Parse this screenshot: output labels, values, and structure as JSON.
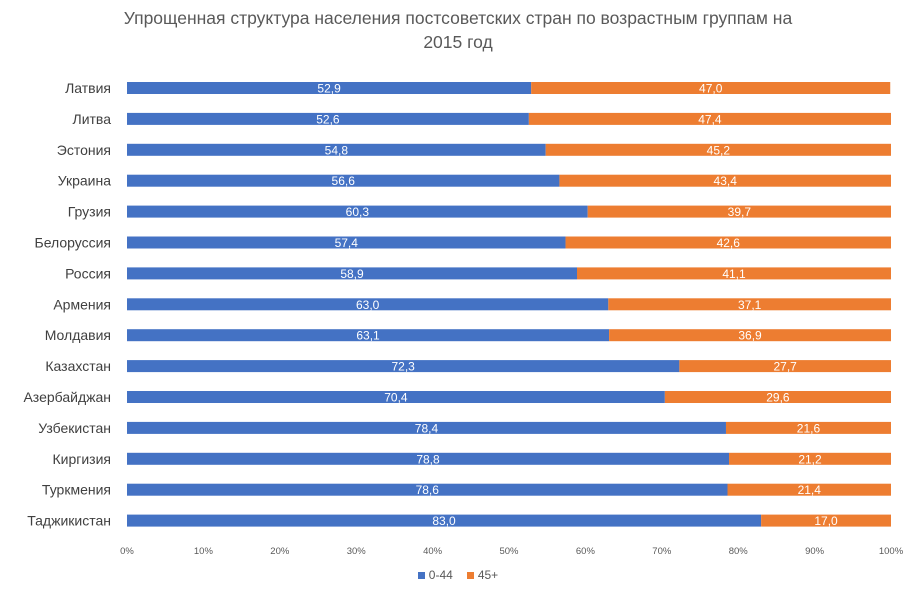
{
  "chart_data": {
    "type": "bar",
    "orientation": "horizontal",
    "stacked": "percent",
    "title": "Упрощенная структура населения постсоветских стран по возрастным группам на 2015 год",
    "title_lines": [
      "Упрощенная структура населения постсоветских стран по возрастным группам на",
      "2015 год"
    ],
    "categories": [
      "Латвия",
      "Литва",
      "Эстония",
      "Украина",
      "Грузия",
      "Белоруссия",
      "Россия",
      "Армения",
      "Молдавия",
      "Казахстан",
      "Азербайджан",
      "Узбекистан",
      "Киргизия",
      "Туркмения",
      "Таджикистан"
    ],
    "series": [
      {
        "name": "0-44",
        "color": "#4472C4",
        "values": [
          52.9,
          52.6,
          54.8,
          56.6,
          60.3,
          57.4,
          58.9,
          63.0,
          63.1,
          72.3,
          70.4,
          78.4,
          78.8,
          78.6,
          83.0
        ],
        "labels": [
          "52,9",
          "52,6",
          "54,8",
          "56,6",
          "60,3",
          "57,4",
          "58,9",
          "63,0",
          "63,1",
          "72,3",
          "70,4",
          "78,4",
          "78,8",
          "78,6",
          "83,0"
        ]
      },
      {
        "name": "45+",
        "color": "#ED7D31",
        "values": [
          47.0,
          47.4,
          45.2,
          43.4,
          39.7,
          42.6,
          41.1,
          37.1,
          36.9,
          27.7,
          29.6,
          21.6,
          21.2,
          21.4,
          17.0
        ],
        "labels": [
          "47,0",
          "47,4",
          "45,2",
          "43,4",
          "39,7",
          "42,6",
          "41,1",
          "37,1",
          "36,9",
          "27,7",
          "29,6",
          "21,6",
          "21,2",
          "21,4",
          "17,0"
        ]
      }
    ],
    "x_ticks": [
      "0%",
      "10%",
      "20%",
      "30%",
      "40%",
      "50%",
      "60%",
      "70%",
      "80%",
      "90%",
      "100%"
    ],
    "xlim": [
      0,
      100
    ],
    "grid": false,
    "legend_position": "bottom"
  }
}
